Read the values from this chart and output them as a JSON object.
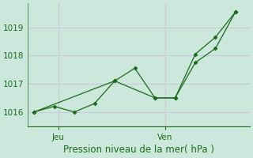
{
  "xlabel": "Pression niveau de la mer( hPa )",
  "bg_color": "#cce8dc",
  "grid_color": "#c8c8d8",
  "line_color": "#1a6b1a",
  "line1_x": [
    0,
    1,
    2,
    3,
    4,
    5,
    6,
    7,
    8,
    9,
    10
  ],
  "line1_y": [
    1016.0,
    1016.2,
    1016.0,
    1016.3,
    1017.1,
    1017.55,
    1016.5,
    1016.5,
    1017.75,
    1018.25,
    1019.55
  ],
  "line2_x": [
    0,
    4,
    6,
    7,
    8,
    9,
    10
  ],
  "line2_y": [
    1016.0,
    1017.1,
    1016.5,
    1016.5,
    1018.05,
    1018.65,
    1019.55
  ],
  "xtick_positions": [
    1.2,
    6.5
  ],
  "xtick_labels": [
    "Jeu",
    "Ven"
  ],
  "ylim": [
    1015.5,
    1019.85
  ],
  "yticks": [
    1016,
    1017,
    1018,
    1019
  ],
  "ytick_labels": [
    "1016",
    "1017",
    "1018",
    "1019"
  ],
  "xlim": [
    -0.3,
    10.7
  ],
  "xlabel_fontsize": 8.5,
  "tick_fontsize": 7.5
}
